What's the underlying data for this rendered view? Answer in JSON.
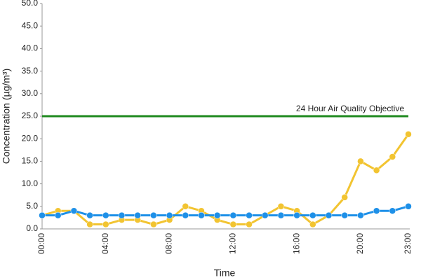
{
  "chart_data": {
    "type": "line",
    "x_label": "Time",
    "y_label": "Concentration (µg/m³)",
    "categories": [
      "00:00",
      null,
      null,
      null,
      "04:00",
      null,
      null,
      null,
      "08:00",
      null,
      null,
      null,
      "12:00",
      null,
      null,
      null,
      "16:00",
      null,
      null,
      null,
      "20:00",
      null,
      null,
      "23:00"
    ],
    "series": [
      {
        "color": "#f2c431",
        "values": [
          3,
          4,
          4,
          1,
          1,
          2,
          2,
          1,
          2,
          5,
          4,
          2,
          1,
          1,
          3,
          5,
          4,
          1,
          3,
          7,
          15,
          13,
          16,
          21
        ]
      },
      {
        "color": "#1e90e8",
        "values": [
          3,
          3,
          4,
          3,
          3,
          3,
          3,
          3,
          3,
          3,
          3,
          3,
          3,
          3,
          3,
          3,
          3,
          3,
          3,
          3,
          3,
          4,
          4,
          5
        ]
      }
    ],
    "objective": {
      "value": 25,
      "label": "24 Hour Air Quality Objective",
      "color": "#1f8a1f"
    },
    "ylim": [
      0,
      50
    ],
    "yticks": [
      {
        "value": 0,
        "label": "0.0"
      },
      {
        "value": 5,
        "label": "5.0"
      },
      {
        "value": 10,
        "label": "10.0"
      },
      {
        "value": 15,
        "label": "15.0"
      },
      {
        "value": 20,
        "label": "20.0"
      },
      {
        "value": 25,
        "label": "25.0"
      },
      {
        "value": 30,
        "label": "30.0"
      },
      {
        "value": 35,
        "label": "35.0"
      },
      {
        "value": 40,
        "label": "40.0"
      },
      {
        "value": 45,
        "label": "45.0"
      },
      {
        "value": 50,
        "label": "50.0"
      }
    ]
  }
}
